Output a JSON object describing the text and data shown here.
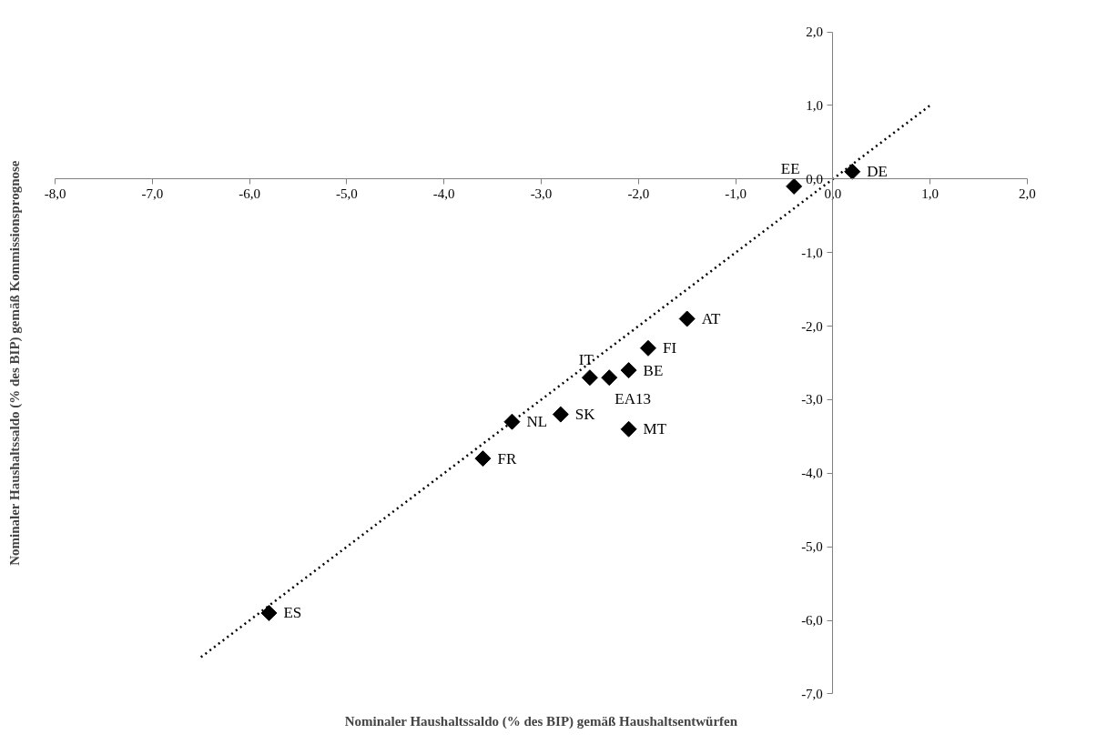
{
  "chart_data": {
    "type": "scatter",
    "xlabel": "Nominaler Haushaltssaldo (% des BIP) gemäß Haushaltsentwürfen",
    "ylabel": "Nominaler Haushaltssaldo (% des BIP) gemäß Kommissionsprognose",
    "xlim": [
      -8,
      2
    ],
    "ylim": [
      -7,
      2
    ],
    "xticks": [
      {
        "value": -8,
        "label": "-8,0"
      },
      {
        "value": -7,
        "label": "-7,0"
      },
      {
        "value": -6,
        "label": "-6,0"
      },
      {
        "value": -5,
        "label": "-5,0"
      },
      {
        "value": -4,
        "label": "-4,0"
      },
      {
        "value": -3,
        "label": "-3,0"
      },
      {
        "value": -2,
        "label": "-2,0"
      },
      {
        "value": -1,
        "label": "-1,0"
      },
      {
        "value": 0,
        "label": "0,0"
      },
      {
        "value": 1,
        "label": "1,0"
      },
      {
        "value": 2,
        "label": "2,0"
      }
    ],
    "yticks": [
      {
        "value": -7,
        "label": "-7,0"
      },
      {
        "value": -6,
        "label": "-6,0"
      },
      {
        "value": -5,
        "label": "-5,0"
      },
      {
        "value": -4,
        "label": "-4,0"
      },
      {
        "value": -3,
        "label": "-3,0"
      },
      {
        "value": -2,
        "label": "-2,0"
      },
      {
        "value": -1,
        "label": "-1,0"
      },
      {
        "value": 0,
        "label": "0,0"
      },
      {
        "value": 1,
        "label": "1,0"
      },
      {
        "value": 2,
        "label": "2,0"
      }
    ],
    "grid": false,
    "marker": "diamond",
    "series": [
      {
        "color": "#000000",
        "x": [
          -0.4,
          0.2,
          -1.5,
          -1.9,
          -2.1,
          -2.3,
          -2.5,
          -2.8,
          -2.1,
          -3.3,
          -3.6,
          -5.8
        ],
        "values": [
          -0.1,
          0.1,
          -1.9,
          -2.3,
          -2.6,
          -2.7,
          -2.7,
          -3.2,
          -3.4,
          -3.3,
          -3.8,
          -5.9
        ]
      },
      {
        "type": "line",
        "color": "#000000",
        "line_style": "dotted",
        "marker": "none",
        "x": [
          -6.5,
          1
        ],
        "values": [
          -6.5,
          1
        ]
      }
    ],
    "annotations": [
      {
        "text": "EE",
        "x": -0.4,
        "y": -0.1
      },
      {
        "text": "DE",
        "x": 0.2,
        "y": 0.1
      },
      {
        "text": "AT",
        "x": -1.5,
        "y": -1.9
      },
      {
        "text": "FI",
        "x": -1.9,
        "y": -2.3
      },
      {
        "text": "BE",
        "x": -2.1,
        "y": -2.6
      },
      {
        "text": "EA13",
        "x": -2.3,
        "y": -2.7
      },
      {
        "text": "IT",
        "x": -2.5,
        "y": -2.7
      },
      {
        "text": "SK",
        "x": -2.8,
        "y": -3.2
      },
      {
        "text": "MT",
        "x": -2.1,
        "y": -3.4
      },
      {
        "text": "NL",
        "x": -3.3,
        "y": -3.3
      },
      {
        "text": "FR",
        "x": -3.6,
        "y": -3.8
      },
      {
        "text": "ES",
        "x": -5.8,
        "y": -5.9
      }
    ]
  }
}
